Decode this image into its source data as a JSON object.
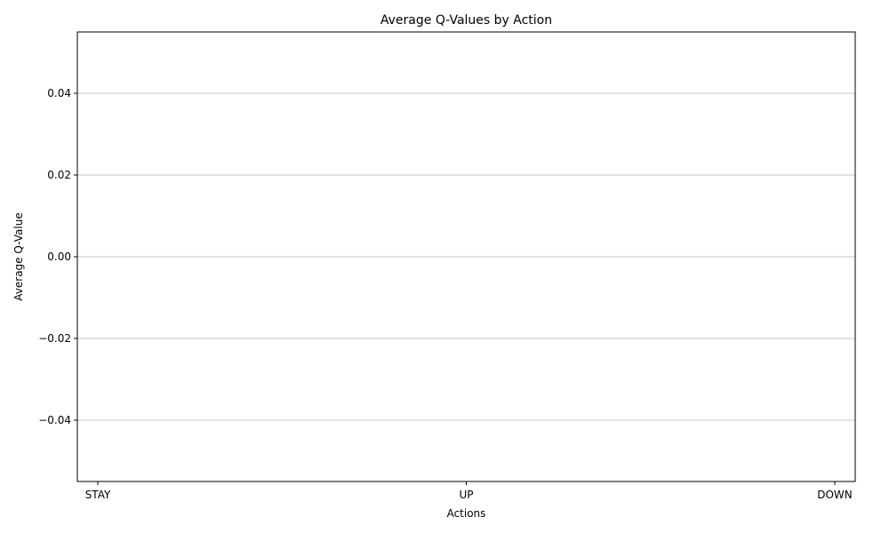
{
  "chart_data": {
    "type": "bar",
    "title": "Average Q-Values by Action",
    "xlabel": "Actions",
    "ylabel": "Average Q-Value",
    "categories": [
      "STAY",
      "UP",
      "DOWN"
    ],
    "values": [
      0,
      0,
      0
    ],
    "ylim": [
      -0.055,
      0.055
    ],
    "yticks": [
      {
        "value": 0.04,
        "label": "0.04"
      },
      {
        "value": 0.02,
        "label": "0.02"
      },
      {
        "value": 0.0,
        "label": "0.00"
      },
      {
        "value": -0.02,
        "label": "−0.02"
      },
      {
        "value": -0.04,
        "label": "−0.04"
      }
    ],
    "grid": "y",
    "bar_color": "#4c72b0",
    "grid_color": "#b0b0b0"
  }
}
